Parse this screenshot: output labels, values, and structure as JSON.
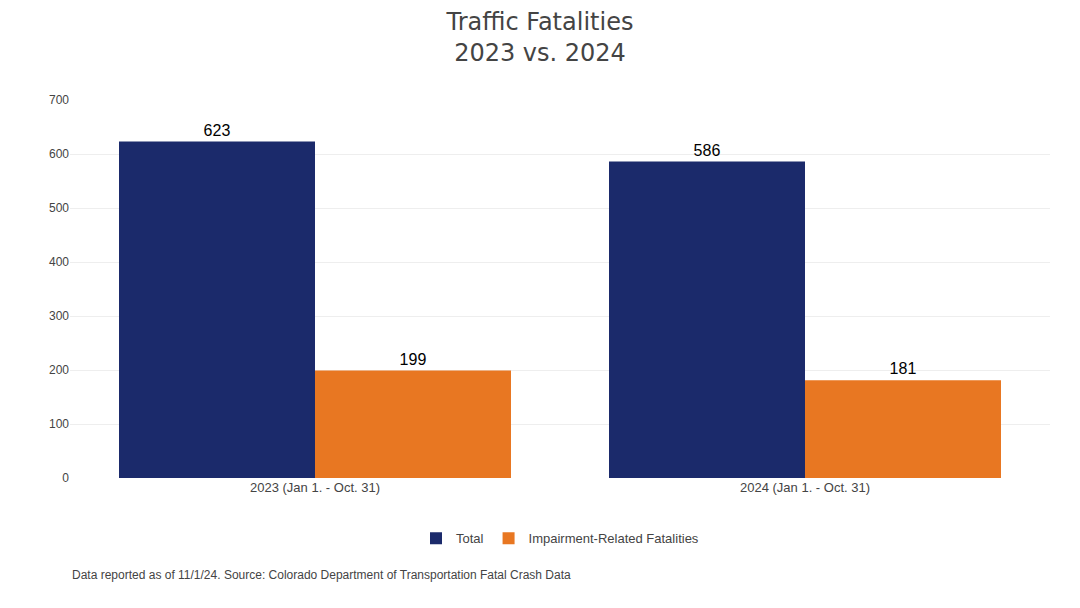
{
  "chart_data": {
    "type": "bar",
    "title": "Traffic Fatalities",
    "subtitle": "2023 vs. 2024",
    "categories": [
      "2023 (Jan 1. - Oct. 31)",
      "2024 (Jan 1. - Oct. 31)"
    ],
    "series": [
      {
        "name": "Total",
        "color": "#1B2A6B",
        "values": [
          623,
          586
        ]
      },
      {
        "name": "Impairment-Related Fatalities",
        "color": "#E87722",
        "values": [
          199,
          181
        ]
      }
    ],
    "ylim": [
      0,
      700
    ],
    "yticks": [
      0,
      100,
      200,
      300,
      400,
      500,
      600,
      700
    ],
    "grid": true,
    "legend": "bottom",
    "data_labels": true,
    "annotations": [
      "Data reported as of 11/1/24. Source: Colorado Department of Transportation Fatal Crash Data"
    ]
  }
}
